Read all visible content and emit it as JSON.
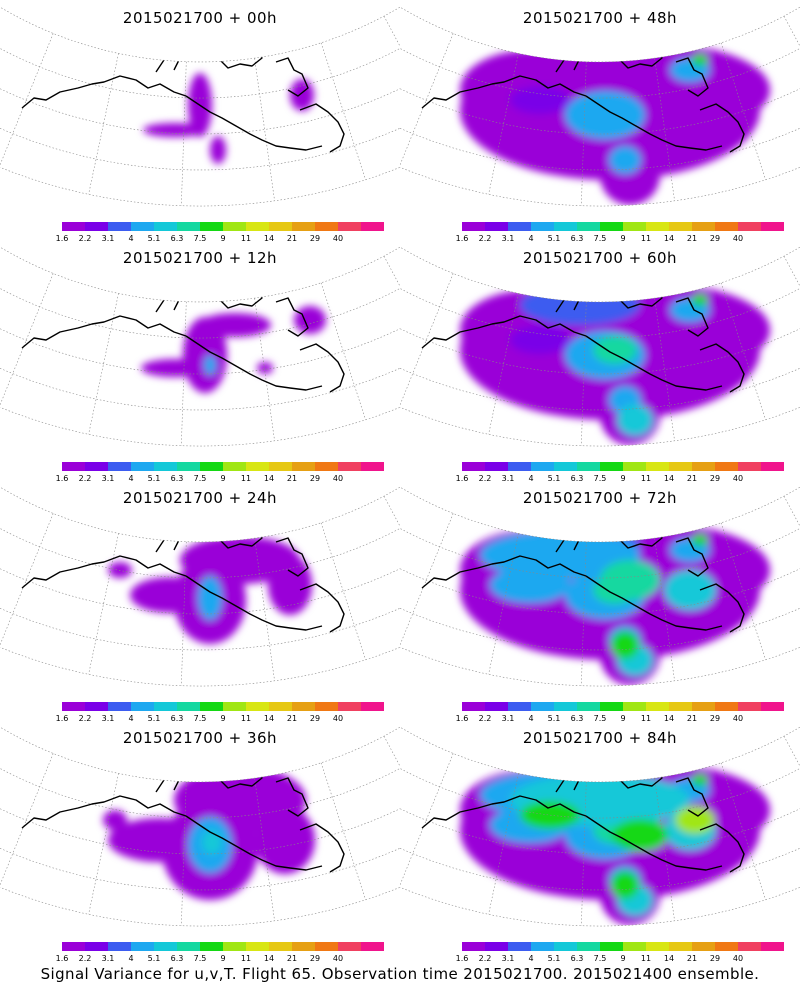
{
  "panels": [
    {
      "title": "2015021700 + 00h",
      "intensity": 0
    },
    {
      "title": "2015021700 + 48h",
      "intensity": 4
    },
    {
      "title": "2015021700 + 12h",
      "intensity": 1
    },
    {
      "title": "2015021700 + 60h",
      "intensity": 5
    },
    {
      "title": "2015021700 + 24h",
      "intensity": 2
    },
    {
      "title": "2015021700 + 72h",
      "intensity": 6
    },
    {
      "title": "2015021700 + 36h",
      "intensity": 3
    },
    {
      "title": "2015021700 + 84h",
      "intensity": 7
    }
  ],
  "colorbar": {
    "labels": [
      "1.6",
      "2.2",
      "3.1",
      "4",
      "5.1",
      "6.3",
      "7.5",
      "9",
      "11",
      "14",
      "21",
      "29",
      "40"
    ],
    "colors": [
      "#9a00d8",
      "#7a00e8",
      "#3c5cf0",
      "#1ea8f0",
      "#14c8d8",
      "#14d8a0",
      "#14d814",
      "#a0e614",
      "#d8e614",
      "#e6c814",
      "#e6a014",
      "#f07814",
      "#f04060",
      "#f0148c"
    ]
  },
  "footer": "Signal Variance for u,v,T. Flight 65. Observation time 2015021700. 2015021400 ensemble."
}
